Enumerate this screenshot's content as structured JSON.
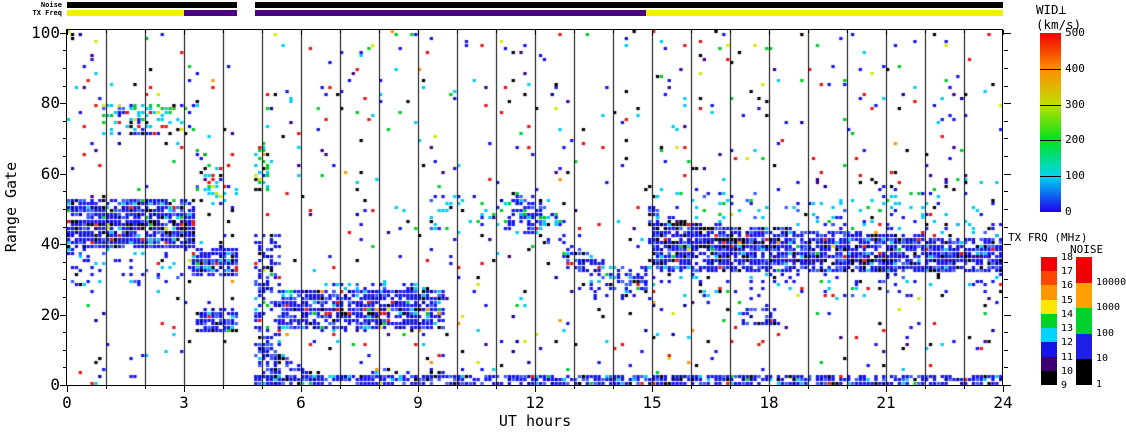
{
  "top_bars": {
    "noise_label": "Noise",
    "tx_freq_label": "TX Freq",
    "noise_segments": [
      {
        "t0": 0,
        "t1": 4.37,
        "color": "#000000"
      },
      {
        "t0": 4.82,
        "t1": 24,
        "color": "#000000"
      }
    ],
    "tx_freq_segments": [
      {
        "t0": 0,
        "t1": 3.0,
        "color": "#f0f000"
      },
      {
        "t0": 3.0,
        "t1": 4.37,
        "color": "#4b0082"
      },
      {
        "t0": 4.82,
        "t1": 14.85,
        "color": "#4b0082"
      },
      {
        "t0": 14.85,
        "t1": 24,
        "color": "#f0f000"
      }
    ]
  },
  "axes": {
    "x": {
      "title": "UT hours",
      "min": 0,
      "max": 24,
      "major_ticks": [
        0,
        3,
        6,
        9,
        12,
        15,
        18,
        21,
        24
      ],
      "minor_step": 1
    },
    "y": {
      "title": "Range Gate",
      "min": 0,
      "max": 100,
      "major_ticks": [
        0,
        20,
        40,
        60,
        80,
        100
      ],
      "minor_step": 5
    }
  },
  "colorbars": {
    "wid": {
      "title": "WID⊥ (km/s)",
      "labels_top_to_bottom": [
        "500",
        "400",
        "300",
        "200",
        "100",
        "0"
      ],
      "gradient_bottom_to_top": [
        "#1e00f0",
        "#00d7f0",
        "#00e11e",
        "#bee100",
        "#ff8c00",
        "#f00000"
      ]
    },
    "txfrq": {
      "title": "TX FRQ (MHz)",
      "labels_top_to_bottom": [
        "18",
        "17",
        "16",
        "15",
        "14",
        "13",
        "12",
        "11",
        "10",
        "9"
      ],
      "colors_top_to_bottom": [
        "#f00000",
        "#ff4600",
        "#ff9600",
        "#ffe600",
        "#00d22d",
        "#00d2ff",
        "#1414e6",
        "#3c0073",
        "#000000"
      ]
    },
    "noise": {
      "title": "NOISE",
      "labels_top_to_bottom": [
        "10000",
        "1000",
        "100",
        "10",
        "1"
      ],
      "colors_top_to_bottom": [
        "#f00000",
        "#ffa000",
        "#00d22d",
        "#1e1ee6",
        "#000000"
      ]
    }
  },
  "chart_data": {
    "type": "heatmap",
    "title": "",
    "xlabel": "UT hours",
    "ylabel": "Range Gate",
    "xlim": [
      0,
      24
    ],
    "ylim": [
      0,
      100
    ],
    "colorbar_label": "WID⊥ (km/s)",
    "colorbar_range": [
      0,
      500
    ],
    "data_gap_ut": [
      4.37,
      4.82
    ],
    "hour_line_step": 1,
    "seed": 1234,
    "cell": {
      "dt_hours": 0.1,
      "dgate": 1
    },
    "palette": {
      "blue": "#1414ee",
      "blue2": "#3a5cff",
      "dkblue": "#0000a0",
      "cyan": "#00ccf5",
      "green": "#00cc28",
      "yellow": "#d8e600",
      "orange": "#ff9600",
      "red": "#e81414",
      "black": "#000000",
      "purple": "#3c0082"
    },
    "mixes": {
      "denseBlue": [
        [
          "blue",
          0.6
        ],
        [
          "blue2",
          0.17
        ],
        [
          "cyan",
          0.07
        ],
        [
          "black",
          0.07
        ],
        [
          "dkblue",
          0.05
        ],
        [
          "red",
          0.02
        ],
        [
          "green",
          0.015
        ],
        [
          "yellow",
          0.005
        ]
      ],
      "looseBlue": [
        [
          "blue",
          0.52
        ],
        [
          "cyan",
          0.24
        ],
        [
          "blue2",
          0.14
        ],
        [
          "black",
          0.1
        ]
      ],
      "looseCyan": [
        [
          "cyan",
          0.44
        ],
        [
          "blue",
          0.34
        ],
        [
          "green",
          0.08
        ],
        [
          "black",
          0.08
        ],
        [
          "blue2",
          0.06
        ]
      ],
      "multi": [
        [
          "cyan",
          0.3
        ],
        [
          "green",
          0.22
        ],
        [
          "blue",
          0.2
        ],
        [
          "black",
          0.12
        ],
        [
          "yellow",
          0.06
        ],
        [
          "blue2",
          0.05
        ],
        [
          "red",
          0.05
        ]
      ],
      "blackRow": [
        [
          "black",
          0.52
        ],
        [
          "blue",
          0.26
        ],
        [
          "red",
          0.07
        ],
        [
          "purple",
          0.06
        ],
        [
          "yellow",
          0.05
        ],
        [
          "orange",
          0.04
        ]
      ],
      "multiRow": [
        [
          "black",
          0.3
        ],
        [
          "blue",
          0.24
        ],
        [
          "red",
          0.15
        ],
        [
          "purple",
          0.1
        ],
        [
          "yellow",
          0.08
        ],
        [
          "green",
          0.08
        ],
        [
          "orange",
          0.05
        ]
      ],
      "darkRow": [
        [
          "black",
          0.4
        ],
        [
          "purple",
          0.3
        ],
        [
          "blue",
          0.2
        ],
        [
          "red",
          0.05
        ],
        [
          "dkblue",
          0.05
        ]
      ],
      "speckle": [
        [
          "blue",
          0.26
        ],
        [
          "black",
          0.16
        ],
        [
          "red",
          0.15
        ],
        [
          "cyan",
          0.14
        ],
        [
          "green",
          0.1
        ],
        [
          "purple",
          0.08
        ],
        [
          "yellow",
          0.04
        ],
        [
          "orange",
          0.03
        ],
        [
          "dkblue",
          0.04
        ]
      ]
    },
    "background_speckle": {
      "density": 0.034,
      "mix": "speckle"
    },
    "bands": [
      {
        "t": [
          0,
          3.25
        ],
        "g0": 39,
        "g1": 52,
        "d": 0.8,
        "mix": "denseBlue"
      },
      {
        "t": [
          0,
          3.25
        ],
        "g0": 43.5,
        "g1": 46,
        "d": 0.45,
        "mix": "blackRow"
      },
      {
        "t": [
          0,
          3.0
        ],
        "g0": 28,
        "g1": 39,
        "d": 0.14,
        "mix": "looseBlue"
      },
      {
        "t": [
          0.9,
          3.3
        ],
        "g0": 71,
        "g1": 79,
        "d": 0.38,
        "mix": "multi"
      },
      {
        "t": [
          3.3,
          4.37
        ],
        "g0": [
          52,
          48
        ],
        "g1": [
          68,
          56
        ],
        "d": 0.3,
        "mix": "multi"
      },
      {
        "t": [
          3.25,
          4.37
        ],
        "g0": 31,
        "g1": 38,
        "d": 0.85,
        "mix": "denseBlue"
      },
      {
        "t": [
          3.3,
          4.37
        ],
        "g0": 15,
        "g1": 21,
        "d": 0.7,
        "mix": "denseBlue"
      },
      {
        "t": [
          4.82,
          5.15
        ],
        "g0": 55,
        "g1": 68,
        "d": 0.3,
        "mix": "multi"
      },
      {
        "t": [
          4.82,
          5.5
        ],
        "g0": 0,
        "g1": 42,
        "d": 0.45,
        "mix": "denseBlue"
      },
      {
        "t": [
          4.9,
          6.4
        ],
        "g0": [
          9,
          0
        ],
        "g1": [
          13,
          2
        ],
        "d": 0.7,
        "mix": "denseBlue"
      },
      {
        "t": [
          4.82,
          24
        ],
        "g0": 0,
        "g1": 2.5,
        "d": 0.72,
        "mix": "denseBlue"
      },
      {
        "t": [
          7.8,
          9.7
        ],
        "g0": 2,
        "g1": 4.5,
        "d": 0.4,
        "mix": "looseBlue"
      },
      {
        "t": [
          5.5,
          9.7
        ],
        "g0": 16,
        "g1": 26,
        "d": 0.78,
        "mix": "denseBlue"
      },
      {
        "t": [
          5.8,
          9.6
        ],
        "g0": 19.5,
        "g1": 21.5,
        "d": 0.5,
        "mix": "multiRow"
      },
      {
        "t": [
          6.8,
          9.4
        ],
        "g0": 26,
        "g1": 28.5,
        "d": 0.28,
        "mix": "looseBlue"
      },
      {
        "t": [
          9.3,
          12.6
        ],
        "g0": 44,
        "g1": 53,
        "d": 0.18,
        "mix": "looseCyan"
      },
      {
        "t": [
          11.4,
          12.15
        ],
        "g0": 43,
        "g1": 52,
        "d": 0.55,
        "mix": "denseBlue"
      },
      {
        "t": [
          12.15,
          12.75
        ],
        "g0": 40,
        "g1": 48,
        "d": 0.28,
        "mix": "looseCyan"
      },
      {
        "t": [
          12.75,
          14.95
        ],
        "g0": [
          33,
          26
        ],
        "g1": [
          40,
          30
        ],
        "d": 0.55,
        "mix": "denseBlue"
      },
      {
        "t": [
          13.4,
          15.0
        ],
        "g0": [
          26,
          22
        ],
        "g1": [
          30,
          26
        ],
        "d": 0.22,
        "mix": "looseBlue"
      },
      {
        "t": [
          14.6,
          14.95
        ],
        "g0": 27,
        "g1": 33,
        "d": 0.45,
        "mix": "denseBlue"
      },
      {
        "t": [
          14.95,
          15.15
        ],
        "g0": 33,
        "g1": 50,
        "d": 0.62,
        "mix": "denseBlue"
      },
      {
        "t": [
          15.0,
          24
        ],
        "g0": 32,
        "g1": [
          46,
          41
        ],
        "d": 0.78,
        "mix": "denseBlue"
      },
      {
        "t": [
          15.0,
          16.3
        ],
        "g0": 44,
        "g1": 46.5,
        "d": 0.5,
        "mix": "blackRow"
      },
      {
        "t": [
          15.3,
          18.5
        ],
        "g0": 39,
        "g1": 41,
        "d": 0.45,
        "mix": "blackRow"
      },
      {
        "t": [
          18.0,
          24
        ],
        "g0": 34.5,
        "g1": 36.5,
        "d": 0.45,
        "mix": "darkRow"
      },
      {
        "t": [
          15.0,
          24
        ],
        "g0": [
          46,
          41
        ],
        "g1": [
          56,
          50
        ],
        "d": 0.12,
        "mix": "looseCyan"
      },
      {
        "t": [
          15.0,
          24
        ],
        "g0": 25,
        "g1": 32,
        "d": 0.12,
        "mix": "looseBlue"
      },
      {
        "t": [
          17.35,
          18.3
        ],
        "g0": 17,
        "g1": 21,
        "d": 0.55,
        "mix": "denseBlue"
      },
      {
        "t": [
          20.5,
          24
        ],
        "g0": 45,
        "g1": 58,
        "d": 0.06,
        "mix": "looseCyan"
      }
    ]
  }
}
